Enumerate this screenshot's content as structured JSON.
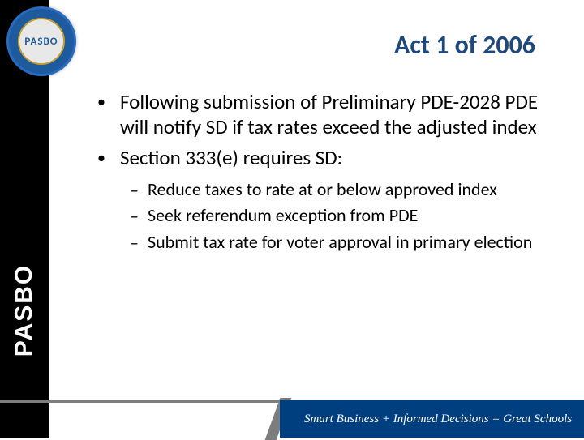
{
  "sidebar": {
    "text": "PASBO"
  },
  "logo": {
    "inner_text": "PASBO"
  },
  "title": "Act 1 of 2006",
  "bullets": {
    "l1_marker": "•",
    "l2_marker": "–",
    "items": [
      {
        "text": "Following submission of Preliminary PDE-2028 PDE will notify SD if tax rates exceed the adjusted index"
      },
      {
        "text": "Section 333(e) requires SD:"
      }
    ],
    "sub_items": [
      {
        "text": "Reduce taxes to rate at or below approved index"
      },
      {
        "text": "Seek referendum exception from PDE"
      },
      {
        "text": "Submit tax rate for voter approval in primary election"
      }
    ]
  },
  "footer": {
    "web": "",
    "tagline": "Smart Business + Informed Decisions = Great Schools"
  },
  "colors": {
    "title": "#1f497d",
    "sidebar_bg": "#000000",
    "footer_bg": "#003f7f",
    "footer_line": "#7d7d7d",
    "seal_bg": "#1e5a9e"
  }
}
